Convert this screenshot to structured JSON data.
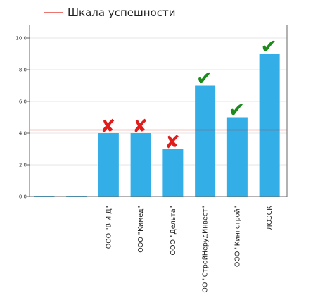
{
  "chart_data": {
    "type": "bar",
    "title": "",
    "xlabel": "",
    "ylabel": "",
    "legend": {
      "label": "Шкала успешности",
      "color": "#e0231e",
      "placement": "top-left"
    },
    "ylim": [
      0,
      10.8
    ],
    "yticks": [
      "0.0",
      "2.0",
      "4.0",
      "6.0",
      "8.0",
      "10.0"
    ],
    "grid": true,
    "bar_color": "#33aee6",
    "reference_line": {
      "value": 4.2,
      "color": "#e0231e"
    },
    "categories": [
      "",
      "",
      "ООО \"В И Д\"",
      "ООО \"Кимед\"",
      "ООО \"Дельта\"",
      "ООО \"СтройНерудИнвест\"",
      "ООО \"Кингстрой\"",
      "ЛОЭСК"
    ],
    "values": [
      0.03,
      0.03,
      4.0,
      4.0,
      3.0,
      7.0,
      5.0,
      9.0
    ],
    "status": [
      "none",
      "none",
      "fail",
      "fail",
      "fail",
      "pass",
      "pass",
      "pass"
    ],
    "status_colors": {
      "pass": "#1d8a1d",
      "fail": "#e21b1b"
    },
    "status_symbols": {
      "pass": "✔",
      "fail": "✘"
    }
  }
}
